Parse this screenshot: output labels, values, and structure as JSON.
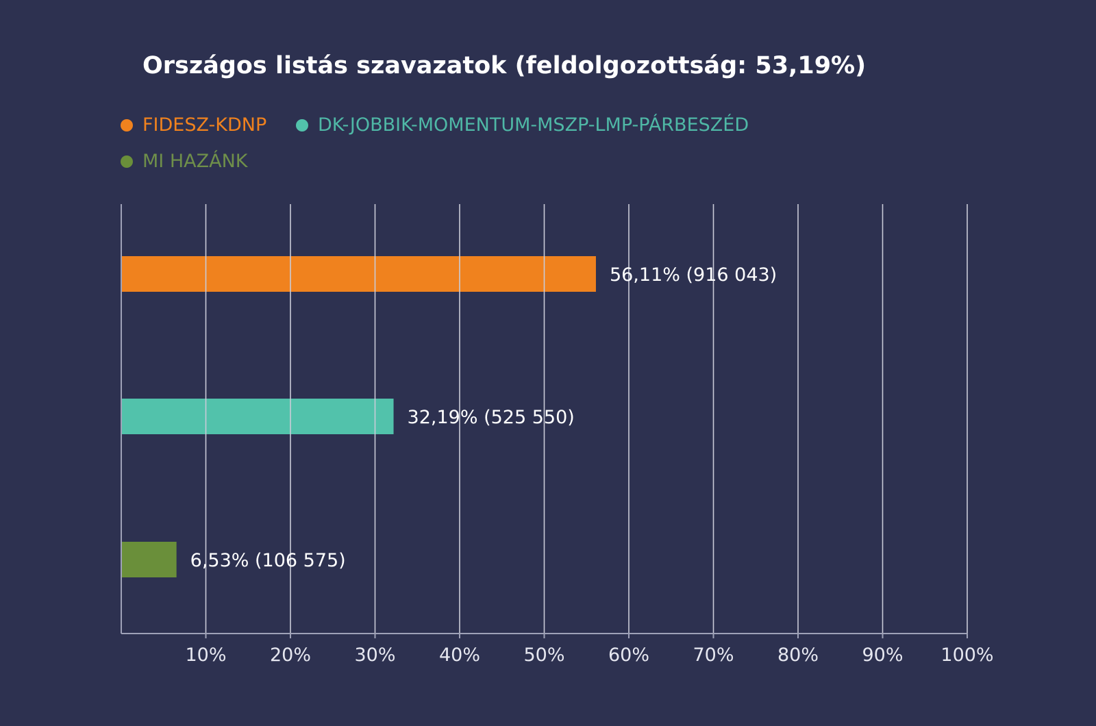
{
  "chart_data": {
    "type": "bar",
    "orientation": "horizontal",
    "title": "Országos listás szavazatok (feldolgozottság: 53,19%)",
    "xlabel": "",
    "ylabel": "",
    "xlim": [
      0,
      100
    ],
    "x_ticks": [
      10,
      20,
      30,
      40,
      50,
      60,
      70,
      80,
      90,
      100
    ],
    "x_tick_labels": [
      "10%",
      "20%",
      "30%",
      "40%",
      "50%",
      "60%",
      "70%",
      "80%",
      "90%",
      "100%"
    ],
    "grid": true,
    "legend_position": "top-left",
    "categories": [
      "FIDESZ-KDNP",
      "DK-JOBBIK-MOMENTUM-MSZP-LMP-PÁRBESZÉD",
      "MI HAZÁNK"
    ],
    "values": [
      56.11,
      32.19,
      6.53
    ],
    "votes": [
      916043,
      525550,
      106575
    ],
    "data_labels": [
      "56,11% (916 043)",
      "32,19% (525 550)",
      "6,53% (106 575)"
    ],
    "colors": [
      "#f0821e",
      "#52c2ab",
      "#6a8f3a"
    ],
    "legend_colors": [
      "#f0821e",
      "#52c2ab",
      "#6a8f3a"
    ],
    "legend_text_colors": [
      "#f0821e",
      "#4fb8a6",
      "#6f8f4a"
    ]
  },
  "theme": {
    "background": "#2d3150",
    "grid_color": "#c9cbd8",
    "axis_color": "#9fa2b8"
  }
}
